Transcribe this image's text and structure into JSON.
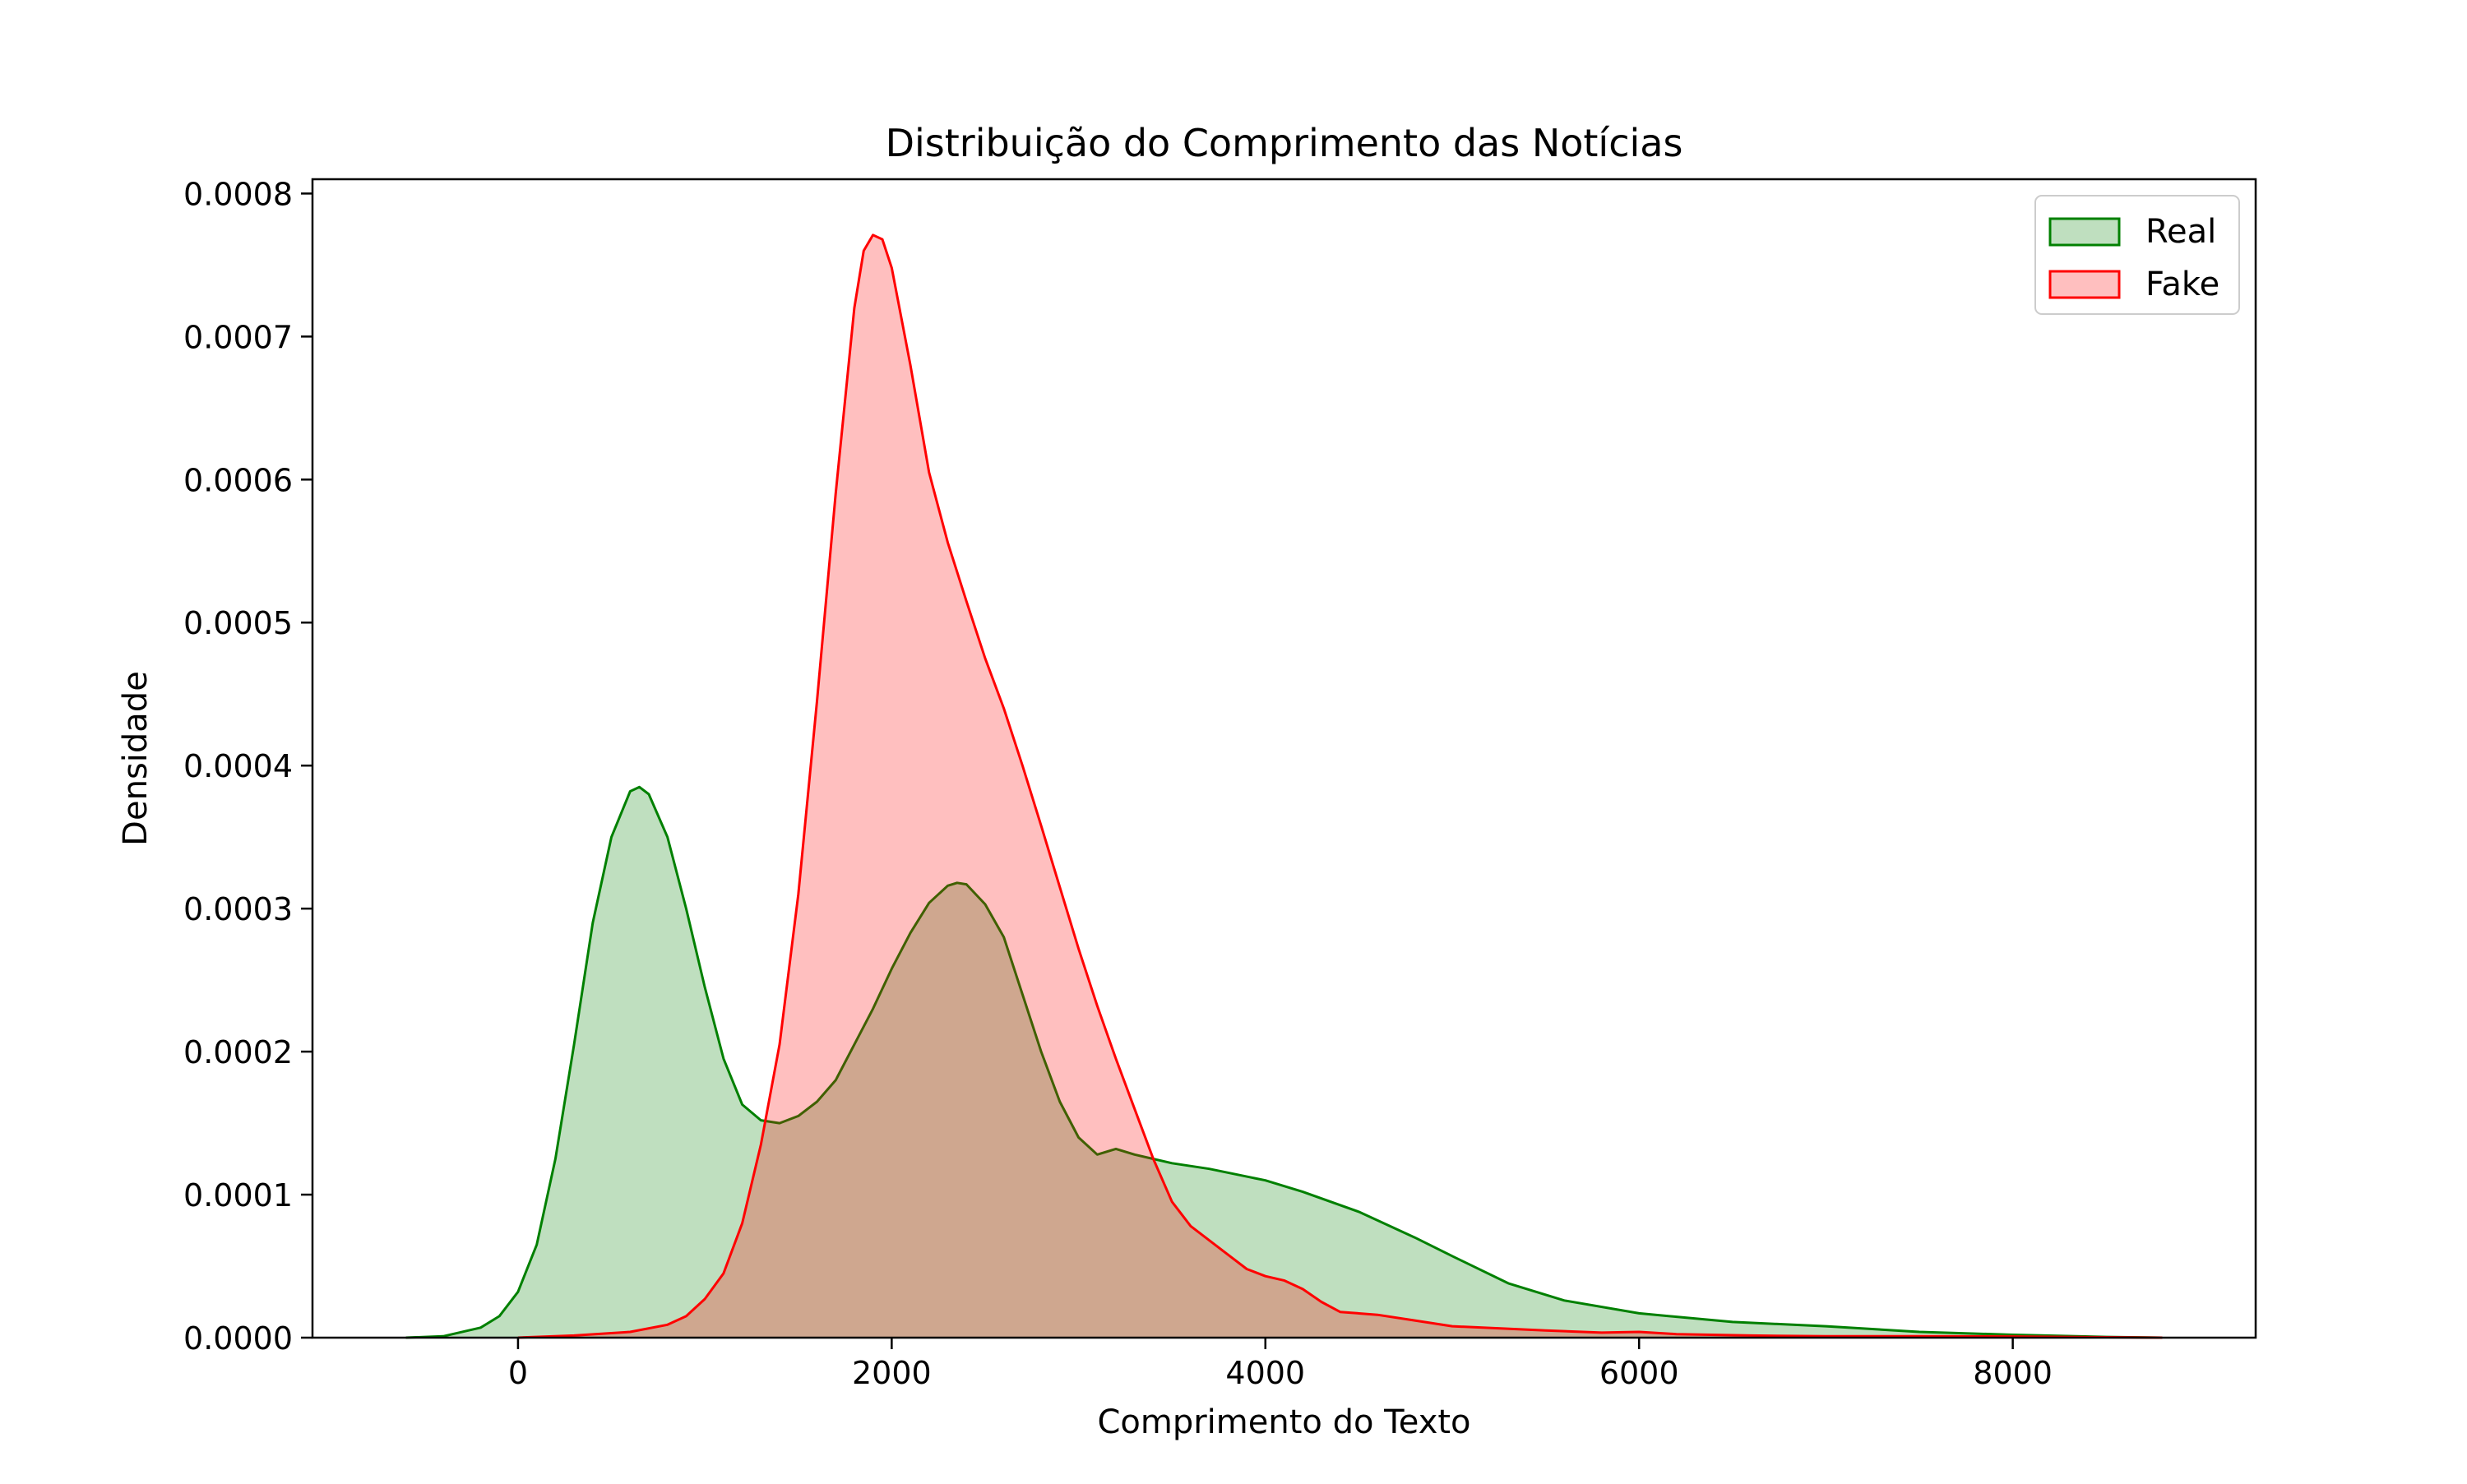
{
  "chart_data": {
    "type": "area",
    "title": "Distribuição do Comprimento das Notícias",
    "xlabel": "Comprimento do Texto",
    "ylabel": "Densidade",
    "xlim": [
      -1100,
      9300
    ],
    "ylim": [
      0,
      0.00081
    ],
    "x_ticks": [
      0,
      2000,
      4000,
      6000,
      8000
    ],
    "x_tick_labels": [
      "0",
      "2000",
      "4000",
      "6000",
      "8000"
    ],
    "y_ticks": [
      0,
      0.0001,
      0.0002,
      0.0003,
      0.0004,
      0.0005,
      0.0006,
      0.0007,
      0.0008
    ],
    "y_tick_labels": [
      "0.0000",
      "0.0001",
      "0.0002",
      "0.0003",
      "0.0004",
      "0.0005",
      "0.0006",
      "0.0007",
      "0.0008"
    ],
    "grid": false,
    "legend_position": "top-right",
    "series": [
      {
        "name": "Real",
        "color": "#008000",
        "fill": "#bfdfbf",
        "points": [
          [
            -600,
            0.0
          ],
          [
            -400,
            1e-06
          ],
          [
            -200,
            7e-06
          ],
          [
            -100,
            1.5e-05
          ],
          [
            0,
            3.2e-05
          ],
          [
            100,
            6.5e-05
          ],
          [
            200,
            0.000125
          ],
          [
            300,
            0.000205
          ],
          [
            400,
            0.00029
          ],
          [
            500,
            0.00035
          ],
          [
            600,
            0.000382
          ],
          [
            650,
            0.000385
          ],
          [
            700,
            0.00038
          ],
          [
            800,
            0.00035
          ],
          [
            900,
            0.0003
          ],
          [
            1000,
            0.000245
          ],
          [
            1100,
            0.000195
          ],
          [
            1200,
            0.000163
          ],
          [
            1300,
            0.000152
          ],
          [
            1400,
            0.00015
          ],
          [
            1500,
            0.000155
          ],
          [
            1600,
            0.000165
          ],
          [
            1700,
            0.00018
          ],
          [
            1800,
            0.000205
          ],
          [
            1900,
            0.00023
          ],
          [
            2000,
            0.000258
          ],
          [
            2100,
            0.000283
          ],
          [
            2200,
            0.000304
          ],
          [
            2300,
            0.000316
          ],
          [
            2350,
            0.000318
          ],
          [
            2400,
            0.000317
          ],
          [
            2500,
            0.000303
          ],
          [
            2600,
            0.00028
          ],
          [
            2700,
            0.00024
          ],
          [
            2800,
            0.0002
          ],
          [
            2900,
            0.000165
          ],
          [
            3000,
            0.00014
          ],
          [
            3100,
            0.000128
          ],
          [
            3200,
            0.000132
          ],
          [
            3300,
            0.000128
          ],
          [
            3500,
            0.000122
          ],
          [
            3700,
            0.000118
          ],
          [
            4000,
            0.00011
          ],
          [
            4200,
            0.000102
          ],
          [
            4500,
            8.8e-05
          ],
          [
            4800,
            7e-05
          ],
          [
            5000,
            5.7e-05
          ],
          [
            5300,
            3.8e-05
          ],
          [
            5600,
            2.6e-05
          ],
          [
            6000,
            1.7e-05
          ],
          [
            6500,
            1.1e-05
          ],
          [
            7000,
            8e-06
          ],
          [
            7500,
            4e-06
          ],
          [
            8000,
            2e-06
          ],
          [
            8500,
            5e-07
          ],
          [
            8800,
            0.0
          ]
        ]
      },
      {
        "name": "Fake",
        "color": "#ff0000",
        "fill": "#ffbfbf",
        "points": [
          [
            0,
            0.0
          ],
          [
            300,
            1.5e-06
          ],
          [
            600,
            4e-06
          ],
          [
            800,
            9e-06
          ],
          [
            900,
            1.5e-05
          ],
          [
            1000,
            2.7e-05
          ],
          [
            1100,
            4.5e-05
          ],
          [
            1200,
            8e-05
          ],
          [
            1300,
            0.000135
          ],
          [
            1400,
            0.000205
          ],
          [
            1500,
            0.00031
          ],
          [
            1600,
            0.000445
          ],
          [
            1700,
            0.00059
          ],
          [
            1800,
            0.00072
          ],
          [
            1850,
            0.00076
          ],
          [
            1900,
            0.000771
          ],
          [
            1950,
            0.000768
          ],
          [
            2000,
            0.000748
          ],
          [
            2100,
            0.00068
          ],
          [
            2200,
            0.000605
          ],
          [
            2300,
            0.000556
          ],
          [
            2400,
            0.000515
          ],
          [
            2500,
            0.000475
          ],
          [
            2600,
            0.00044
          ],
          [
            2700,
            0.0004
          ],
          [
            2800,
            0.000358
          ],
          [
            2900,
            0.000315
          ],
          [
            3000,
            0.000272
          ],
          [
            3100,
            0.000232
          ],
          [
            3200,
            0.000195
          ],
          [
            3300,
            0.00016
          ],
          [
            3400,
            0.000125
          ],
          [
            3500,
            9.5e-05
          ],
          [
            3600,
            7.8e-05
          ],
          [
            3700,
            6.8e-05
          ],
          [
            3800,
            5.8e-05
          ],
          [
            3900,
            4.8e-05
          ],
          [
            4000,
            4.3e-05
          ],
          [
            4100,
            4e-05
          ],
          [
            4200,
            3.4e-05
          ],
          [
            4300,
            2.5e-05
          ],
          [
            4400,
            1.8e-05
          ],
          [
            4600,
            1.6e-05
          ],
          [
            4800,
            1.2e-05
          ],
          [
            5000,
            8e-06
          ],
          [
            5500,
            5e-06
          ],
          [
            5800,
            3.5e-06
          ],
          [
            6000,
            4e-06
          ],
          [
            6200,
            2.5e-06
          ],
          [
            6600,
            1.5e-06
          ],
          [
            7000,
            1e-06
          ],
          [
            7500,
            1e-06
          ],
          [
            8000,
            8e-07
          ],
          [
            8500,
            3e-07
          ],
          [
            8800,
            0.0
          ]
        ]
      }
    ]
  }
}
